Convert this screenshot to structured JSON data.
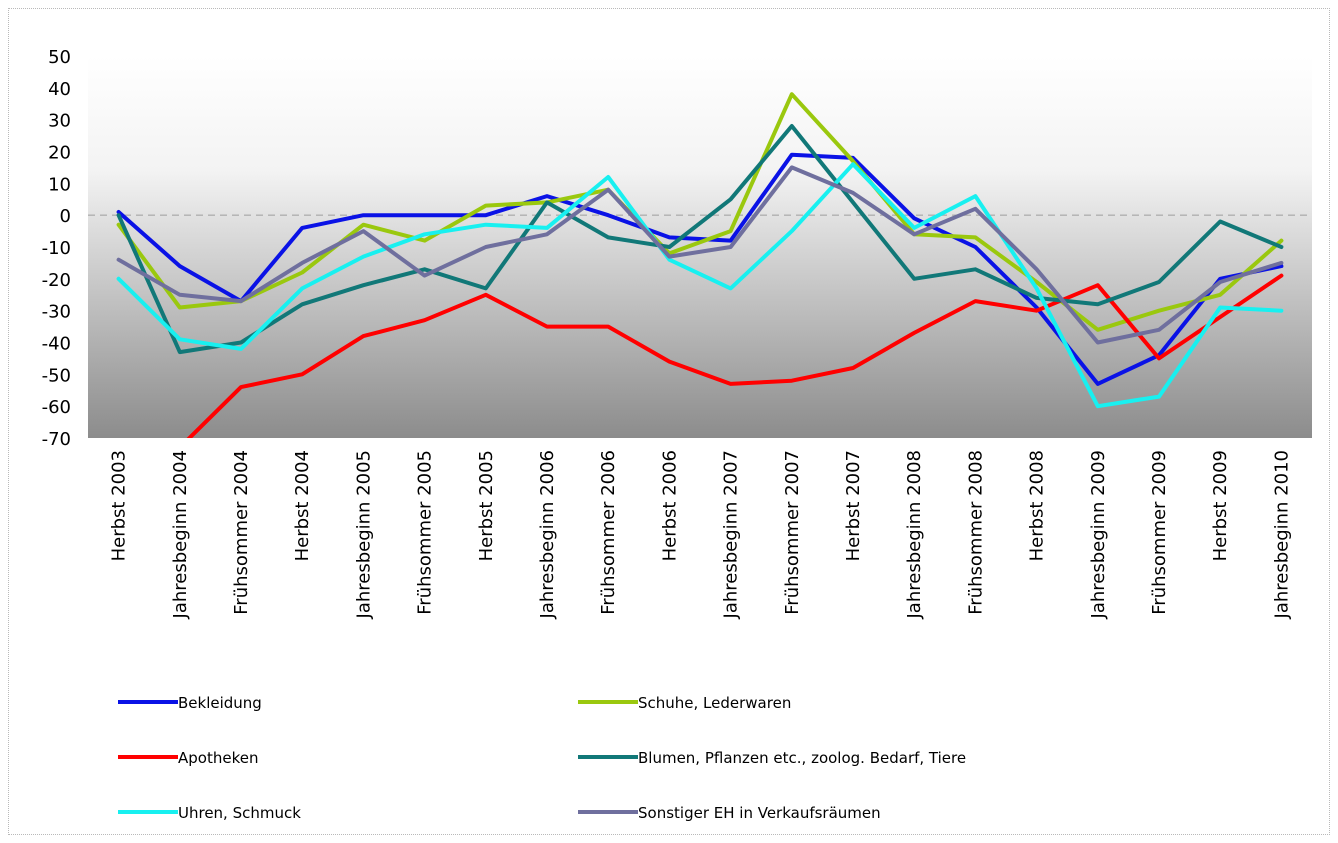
{
  "chart_data": {
    "type": "line",
    "title": "",
    "xlabel": "",
    "ylabel": "",
    "ylim": [
      -70,
      50
    ],
    "y_ticks": [
      50,
      40,
      30,
      20,
      10,
      0,
      -10,
      -20,
      -30,
      -40,
      -50,
      -60,
      -70
    ],
    "zero_line": true,
    "legend_position": "bottom",
    "categories": [
      "Herbst 2003",
      "Jahresbeginn 2004",
      "Frühsommer 2004",
      "Herbst 2004",
      "Jahresbeginn 2005",
      "Frühsommer 2005",
      "Herbst 2005",
      "Jahresbeginn 2006",
      "Frühsommer 2006",
      "Herbst 2006",
      "Jahresbeginn 2007",
      "Frühsommer 2007",
      "Herbst 2007",
      "Jahresbeginn 2008",
      "Frühsommer 2008",
      "Herbst 2008",
      "Jahresbeginn 2009",
      "Frühsommer 2009",
      "Herbst 2009",
      "Jahresbeginn 2010"
    ],
    "series": [
      {
        "name": "Bekleidung",
        "color": "#0a12e6",
        "values": [
          1,
          -16,
          -27,
          -4,
          0,
          0,
          0,
          6,
          0,
          -7,
          -8,
          19,
          18,
          -1,
          -10,
          -29,
          -53,
          -44,
          -20,
          -16
        ]
      },
      {
        "name": "Schuhe, Lederwaren",
        "color": "#9ac80e",
        "values": [
          -3,
          -29,
          -27,
          -18,
          -3,
          -8,
          3,
          4,
          8,
          -12,
          -5,
          38,
          17,
          -6,
          -7,
          -21,
          -36,
          -30,
          -25,
          -8
        ]
      },
      {
        "name": "Apotheken",
        "color": "#ff0000",
        "values": [
          null,
          -73,
          -54,
          -50,
          -38,
          -33,
          -25,
          -35,
          -35,
          -46,
          -53,
          -52,
          -48,
          -37,
          -27,
          -30,
          -22,
          -45,
          -32,
          -19
        ]
      },
      {
        "name": "Blumen, Pflanzen etc., zoolog. Bedarf, Tiere",
        "color": "#117878",
        "values": [
          0,
          -43,
          -40,
          -28,
          -22,
          -17,
          -23,
          4,
          -7,
          -10,
          5,
          28,
          4,
          -20,
          -17,
          -26,
          -28,
          -21,
          -2,
          -10
        ]
      },
      {
        "name": "Uhren, Schmuck",
        "color": "#18f0f0",
        "values": [
          -20,
          -39,
          -42,
          -23,
          -13,
          -6,
          -3,
          -4,
          12,
          -14,
          -23,
          -5,
          16,
          -4,
          6,
          -23,
          -60,
          -57,
          -29,
          -30
        ]
      },
      {
        "name": "Sonstiger EH in Verkaufsräumen",
        "color": "#6f6f9e",
        "values": [
          -14,
          -25,
          -27,
          -15,
          -5,
          -19,
          -10,
          -6,
          8,
          -13,
          -10,
          15,
          7,
          -6,
          2,
          -17,
          -40,
          -36,
          -21,
          -15
        ]
      }
    ]
  }
}
